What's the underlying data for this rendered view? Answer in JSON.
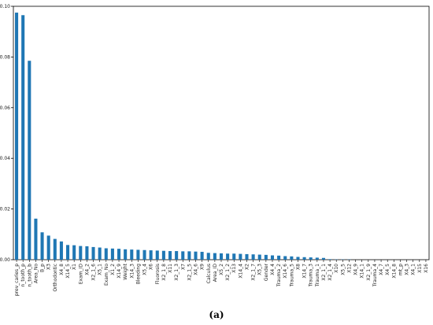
{
  "chart_data": {
    "type": "bar",
    "title": "",
    "xlabel": "",
    "ylabel": "",
    "ylim": [
      0,
      0.1
    ],
    "yticks": [
      "0.00",
      "0.02",
      "0.04",
      "0.06",
      "0.08",
      "0.10"
    ],
    "bar_color": "#1f77b4",
    "categories": [
      "prev_caries_p",
      "n_tooth_p",
      "n_tooth_b",
      "Area_No",
      "B_p",
      "X3",
      "Orthodontic",
      "X4_8",
      "X14_5",
      "X1",
      "Exam_ID",
      "X4_2",
      "X2_1_6",
      "X5_1",
      "Exam_No",
      "X1_2",
      "X14_9",
      "Weight",
      "X14_3",
      "Bleeding",
      "X5_4",
      "X6",
      "Fluorosis",
      "X2_1_8",
      "X11",
      "X2_1_3",
      "X7",
      "X2_1_5",
      "X4_6",
      "X9",
      "Calculus",
      "Area_ID",
      "X5_2",
      "X2_1_2",
      "X13",
      "X14_4",
      "X2",
      "X2_1_7",
      "X5_3",
      "Gender",
      "X4_4",
      "Trauma_2",
      "X14_6",
      "Trauma_5",
      "X8",
      "X14_7",
      "Trauma_3",
      "Trauma_1",
      "X2_1_1",
      "X2_1_4",
      "X10",
      "X5_5",
      "X12",
      "X4_9",
      "X14_1",
      "X2_1_9",
      "Trauma_4",
      "X4_7",
      "X4_5",
      "X14_8",
      "mt_p",
      "X4_3",
      "X4_1",
      "X15",
      "X16"
    ],
    "values": [
      0.0975,
      0.0965,
      0.0785,
      0.0162,
      0.0108,
      0.0095,
      0.0082,
      0.0072,
      0.0058,
      0.0057,
      0.0054,
      0.0053,
      0.005,
      0.0048,
      0.0045,
      0.0044,
      0.0043,
      0.0041,
      0.004,
      0.0039,
      0.0038,
      0.0037,
      0.0036,
      0.0035,
      0.0034,
      0.0034,
      0.0033,
      0.0033,
      0.0032,
      0.0031,
      0.0027,
      0.0026,
      0.0025,
      0.0024,
      0.0024,
      0.0023,
      0.0022,
      0.0021,
      0.002,
      0.0019,
      0.0017,
      0.0016,
      0.0014,
      0.0013,
      0.0011,
      0.001,
      0.0009,
      0.0008,
      0.0007,
      0.0002,
      0.0001,
      0.0001,
      0.0001,
      0.0,
      0.0,
      0.0,
      0.0,
      0.0,
      0.0,
      0.0,
      0.0,
      0.0,
      0.0,
      0.0,
      0.0
    ]
  },
  "caption": "(a)"
}
